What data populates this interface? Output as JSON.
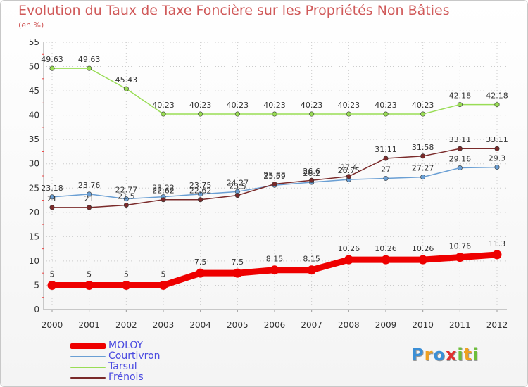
{
  "title": "Evolution du Taux de Taxe Foncière sur les Propriétés Non Bâties",
  "unit": "(en %)",
  "colors": {
    "title": "#d05a5a",
    "grid": "#cccccc",
    "legend_text": "#4a4ae0"
  },
  "logo": {
    "letters": [
      {
        "char": "P",
        "color": "#3b8fd6"
      },
      {
        "char": "r",
        "color": "#f0a020"
      },
      {
        "char": "o",
        "color": "#3b8fd6"
      },
      {
        "char": "x",
        "color": "#e03030"
      },
      {
        "char": "i",
        "color": "#6cbf3a"
      },
      {
        "char": "t",
        "color": "#f0a020"
      },
      {
        "char": "i",
        "color": "#6cbf3a"
      }
    ]
  },
  "chart_data": {
    "type": "line",
    "title": "Evolution du Taux de Taxe Foncière sur les Propriétés Non Bâties",
    "ylabel": "(en %)",
    "xlabel": "",
    "x": [
      "2000",
      "2001",
      "2002",
      "2003",
      "2004",
      "2005",
      "2006",
      "2007",
      "2008",
      "2009",
      "2010",
      "2011",
      "2012"
    ],
    "ylim": [
      0,
      55
    ],
    "yticks": [
      0,
      5,
      10,
      15,
      20,
      25,
      30,
      35,
      40,
      45,
      50,
      55
    ],
    "grid": "horizontal dotted",
    "legend": "bottom-left",
    "series": [
      {
        "name": "MOLOY",
        "color": "#ee0000",
        "thick": true,
        "values": [
          5,
          5,
          5,
          5,
          7.5,
          7.5,
          8.15,
          8.15,
          10.26,
          10.26,
          10.26,
          10.76,
          11.3
        ],
        "labels": [
          "5",
          "5",
          "5",
          "5",
          "7.5",
          "7.5",
          "8.15",
          "8.15",
          "10.26",
          "10.26",
          "10.26",
          "10.76",
          "11.3"
        ]
      },
      {
        "name": "Courtivron",
        "color": "#6a9fd4",
        "thick": false,
        "values": [
          23.18,
          23.76,
          22.77,
          23.22,
          23.75,
          24.27,
          25.59,
          26.2,
          26.75,
          27,
          27.27,
          29.16,
          29.3
        ],
        "labels": [
          "23.18",
          "23.76",
          "22.77",
          "23.22",
          "23.75",
          "24.27",
          "25.59",
          "26.2",
          "26.75",
          "27",
          "27.27",
          "29.16",
          "29.3"
        ]
      },
      {
        "name": "Tarsul",
        "color": "#99dd55",
        "thick": false,
        "values": [
          49.63,
          49.63,
          45.43,
          40.23,
          40.23,
          40.23,
          40.23,
          40.23,
          40.23,
          40.23,
          40.23,
          42.18,
          42.18
        ],
        "labels": [
          "49.63",
          "49.63",
          "45.43",
          "40.23",
          "40.23",
          "40.23",
          "40.23",
          "40.23",
          "40.23",
          "40.23",
          "40.23",
          "42.18",
          "42.18"
        ]
      },
      {
        "name": "Frénois",
        "color": "#7a2a2a",
        "thick": false,
        "values": [
          21,
          21,
          21.5,
          22.62,
          22.62,
          23.5,
          25.83,
          26.6,
          27.4,
          31.11,
          31.58,
          33.11,
          33.11
        ],
        "labels": [
          "21",
          "21",
          "21.5",
          "22.62",
          "22.62",
          "23.5",
          "25.83",
          "26.6",
          "27.4",
          "31.11",
          "31.58",
          "33.11",
          "33.11"
        ]
      }
    ]
  }
}
